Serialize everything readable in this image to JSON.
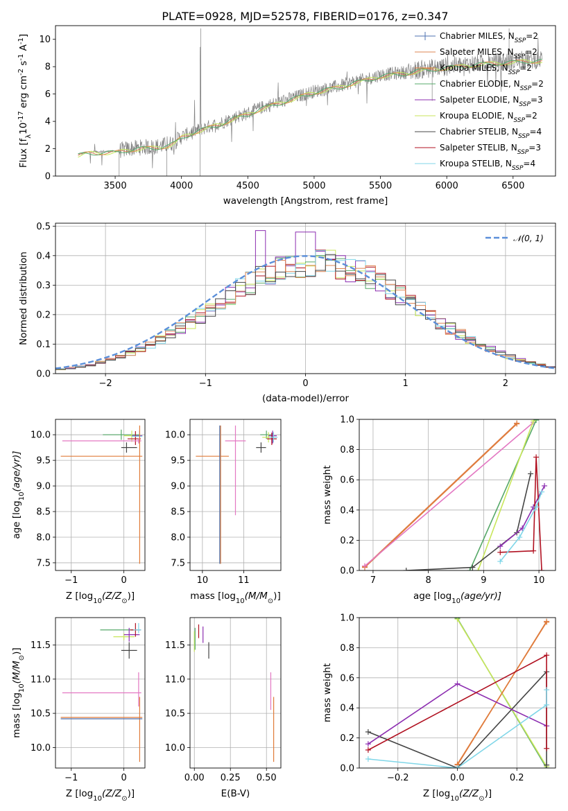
{
  "figure_title": "PLATE=0928, MJD=52578, FIBERID=0176, z=0.347",
  "colors": {
    "chabrier_miles": "#4c72b0",
    "salpeter_miles": "#dd8452",
    "kroupa_miles": "#e07b39",
    "chabrier_elodie": "#55a868",
    "salpeter_elodie": "#8c2db0",
    "kroupa_elodie": "#c8e65a",
    "chabrier_stelib": "#444444",
    "salpeter_stelib": "#b01020",
    "kroupa_stelib": "#7fd6e8",
    "pink": "#e377c2",
    "data_grey": "#808080",
    "gaussian": "#5b8fd9"
  },
  "chart_data": [
    {
      "id": "spectrum",
      "type": "line",
      "title": "PLATE=0928, MJD=52578, FIBERID=0176, z=0.347",
      "xlabel": "wavelength [Angstrom, rest frame]",
      "ylabel_main": "Flux [f",
      "ylabel_sub": "λ",
      "ylabel_rest": "10",
      "ylabel_sup": "-17",
      "ylabel_units": " erg cm",
      "ylabel_sup2": "-2",
      "ylabel_s": " s",
      "ylabel_sup3": "-1",
      "ylabel_A": " A",
      "ylabel_sup4": "-1",
      "ylabel_end": "]",
      "xlim": [
        3050,
        6820
      ],
      "ylim": [
        0,
        11
      ],
      "xticks": [
        3500,
        4000,
        4500,
        5000,
        5500,
        6000,
        6500
      ],
      "yticks": [
        0,
        2,
        4,
        6,
        8,
        10
      ],
      "grid": false,
      "legend_position": "upper-right",
      "legend": [
        {
          "label": "Chabrier MILES, N",
          "sub": "SSP",
          "tail": "=2",
          "color_key": "chabrier_miles"
        },
        {
          "label": "Salpeter MILES, N",
          "sub": "SSP",
          "tail": "=2",
          "color_key": "salpeter_miles"
        },
        {
          "label": "Kroupa MILES, N",
          "sub": "SSP",
          "tail": "=2",
          "color_key": "kroupa_miles"
        },
        {
          "label": "Chabrier ELODIE, N",
          "sub": "SSP",
          "tail": "=2",
          "color_key": "chabrier_elodie"
        },
        {
          "label": "Salpeter ELODIE, N",
          "sub": "SSP",
          "tail": "=3",
          "color_key": "salpeter_elodie"
        },
        {
          "label": "Kroupa ELODIE, N",
          "sub": "SSP",
          "tail": "=2",
          "color_key": "kroupa_elodie"
        },
        {
          "label": "Chabrier STELIB, N",
          "sub": "SSP",
          "tail": "=4",
          "color_key": "chabrier_stelib"
        },
        {
          "label": "Salpeter STELIB, N",
          "sub": "SSP",
          "tail": "=3",
          "color_key": "salpeter_stelib"
        },
        {
          "label": "Kroupa STELIB, N",
          "sub": "SSP",
          "tail": "=4",
          "color_key": "kroupa_stelib"
        }
      ],
      "model_continuum": {
        "x": [
          3220,
          3300,
          3400,
          3500,
          3550,
          3600,
          3700,
          3800,
          3900,
          3950,
          4000,
          4100,
          4200,
          4300,
          4400,
          4500,
          4600,
          4700,
          4800,
          4900,
          5000,
          5100,
          5200,
          5300,
          5400,
          5500,
          5600,
          5700,
          5800,
          5900,
          6000,
          6100,
          6200,
          6300,
          6400,
          6500,
          6600,
          6700
        ],
        "y": [
          1.6,
          1.75,
          1.8,
          1.8,
          1.9,
          2.0,
          2.1,
          2.15,
          2.3,
          2.5,
          2.9,
          3.3,
          3.6,
          3.9,
          4.3,
          4.6,
          5.0,
          5.3,
          5.6,
          5.9,
          6.2,
          6.4,
          6.6,
          6.9,
          7.1,
          7.4,
          7.5,
          7.6,
          7.8,
          7.9,
          8.0,
          8.1,
          8.2,
          8.3,
          8.35,
          8.4,
          8.5,
          8.5
        ]
      }
    },
    {
      "id": "residual-histogram",
      "type": "histogram",
      "xlabel": "(data-model)/error",
      "ylabel": "Normed distribution",
      "xlim": [
        -2.5,
        2.5
      ],
      "ylim": [
        0,
        0.51
      ],
      "xticks": [
        -2,
        -1,
        0,
        1,
        2
      ],
      "yticks": [
        0.0,
        0.1,
        0.2,
        0.3,
        0.4,
        0.5
      ],
      "grid": true,
      "legend_position": "upper-right",
      "gaussian_label": "𝒩(0, 1)",
      "bin_width": 0.1
    },
    {
      "id": "age-vs-metallicity",
      "type": "errorbar",
      "xlabel": "Z [log",
      "xlabel_sub": "10",
      "xlabel_tail": "(Z/Z",
      "xlabel_sun": "⊙",
      "xlabel_end": ")]",
      "ylabel": "age  [log",
      "ylabel_sub": "10",
      "ylabel_tail": "(age/yr)]",
      "xlim": [
        -1.3,
        0.4
      ],
      "ylim": [
        7.35,
        10.3
      ],
      "xticks": [
        -1,
        0
      ],
      "yticks": [
        7.5,
        8.0,
        8.5,
        9.0,
        9.5,
        10.0
      ],
      "grid": true,
      "points": [
        {
          "x": -0.05,
          "y": 10.0,
          "xerr": [
            0.35,
            0.35
          ],
          "yerr": [
            0.1,
            0.1
          ],
          "color_key": "chabrier_elodie"
        },
        {
          "x": 0.15,
          "y": 9.98,
          "xerr": [
            0.15,
            0.15
          ],
          "yerr": [
            0.12,
            0.1
          ],
          "color_key": "kroupa_elodie"
        },
        {
          "x": 0.3,
          "y": 9.98,
          "xerr": [
            0.15,
            0.05
          ],
          "yerr": [
            0.15,
            0.1
          ],
          "color_key": "salpeter_elodie"
        },
        {
          "x": 0.05,
          "y": 9.75,
          "xerr": [
            0.1,
            0.2
          ],
          "yerr": [
            0.1,
            0.1
          ],
          "color_key": "chabrier_stelib"
        },
        {
          "x": 0.22,
          "y": 9.92,
          "xerr": [
            0.15,
            0.1
          ],
          "yerr": [
            0.12,
            0.15
          ],
          "color_key": "salpeter_stelib"
        },
        {
          "x": 0.3,
          "y": 9.97,
          "xerr": [
            0.15,
            0.05
          ],
          "yerr": [
            0.1,
            0.1
          ],
          "color_key": "kroupa_stelib"
        },
        {
          "x": 0.28,
          "y": 9.88,
          "xerr": [
            1.45,
            0.05
          ],
          "yerr": [
            0.05,
            0.05
          ],
          "color_key": "pink"
        },
        {
          "x": 0.3,
          "y": 9.58,
          "xerr": [
            1.5,
            0.05
          ],
          "yerr": [
            2.1,
            0.6
          ],
          "color_key": "kroupa_miles"
        }
      ]
    },
    {
      "id": "age-vs-mass",
      "type": "errorbar",
      "xlabel": "mass [log",
      "xlabel_sub": "10",
      "xlabel_tail": "(M/M",
      "xlabel_sun": "⊙",
      "xlabel_end": ")]",
      "xlim": [
        9.7,
        11.9
      ],
      "ylim": [
        7.35,
        10.3
      ],
      "xticks": [
        10,
        11
      ],
      "yticks": [
        7.5,
        8.0,
        8.5,
        9.0,
        9.5,
        10.0
      ],
      "grid": true,
      "points": [
        {
          "x": 11.55,
          "y": 10.0,
          "xerr": [
            0.15,
            0.15
          ],
          "yerr": [
            0.08,
            0.08
          ],
          "color_key": "chabrier_elodie"
        },
        {
          "x": 11.6,
          "y": 9.95,
          "xerr": [
            0.15,
            0.1
          ],
          "yerr": [
            0.1,
            0.1
          ],
          "color_key": "kroupa_elodie"
        },
        {
          "x": 11.7,
          "y": 9.98,
          "xerr": [
            0.1,
            0.1
          ],
          "yerr": [
            0.15,
            0.1
          ],
          "color_key": "salpeter_elodie"
        },
        {
          "x": 11.42,
          "y": 9.75,
          "xerr": [
            0.12,
            0.12
          ],
          "yerr": [
            0.1,
            0.1
          ],
          "color_key": "chabrier_stelib"
        },
        {
          "x": 11.68,
          "y": 9.92,
          "xerr": [
            0.12,
            0.12
          ],
          "yerr": [
            0.12,
            0.12
          ],
          "color_key": "salpeter_stelib"
        },
        {
          "x": 11.72,
          "y": 9.95,
          "xerr": [
            0.1,
            0.1
          ],
          "yerr": [
            0.1,
            0.1
          ],
          "color_key": "kroupa_stelib"
        },
        {
          "x": 10.8,
          "y": 9.88,
          "xerr": [
            0.25,
            0.25
          ],
          "yerr": [
            1.45,
            0.3
          ],
          "color_key": "pink"
        },
        {
          "x": 10.44,
          "y": 9.58,
          "xerr": [
            0.6,
            0.2
          ],
          "yerr": [
            2.1,
            0.6
          ],
          "color_key": "kroupa_miles"
        },
        {
          "x": 10.42,
          "y": 9.58,
          "xerr": [
            0.0,
            0.0
          ],
          "yerr": [
            2.1,
            0.6
          ],
          "color_key": "chabrier_miles"
        }
      ]
    },
    {
      "id": "mass-weight-vs-age",
      "type": "line",
      "xlabel": "age  [log",
      "xlabel_sub": "10",
      "xlabel_tail": "(age/yr)]",
      "ylabel": "mass weight",
      "xlim": [
        6.75,
        10.3
      ],
      "ylim": [
        0,
        1.0
      ],
      "xticks": [
        7,
        8,
        9,
        10
      ],
      "yticks": [
        0.0,
        0.2,
        0.4,
        0.6,
        0.8,
        1.0
      ],
      "grid": true,
      "series": [
        {
          "color_key": "salpeter_miles",
          "x": [
            6.85,
            9.6
          ],
          "y": [
            0.025,
            0.975
          ]
        },
        {
          "color_key": "kroupa_miles",
          "x": [
            6.85,
            9.6
          ],
          "y": [
            0.02,
            0.97
          ]
        },
        {
          "color_key": "pink",
          "x": [
            6.85,
            9.9
          ],
          "y": [
            0.03,
            0.98
          ]
        },
        {
          "color_key": "chabrier_elodie",
          "x": [
            8.75,
            9.95
          ],
          "y": [
            0.0,
            0.995
          ]
        },
        {
          "color_key": "kroupa_elodie",
          "x": [
            8.9,
            9.9
          ],
          "y": [
            0.0,
            0.99
          ]
        },
        {
          "color_key": "chabrier_stelib",
          "x": [
            7.6,
            8.8,
            9.6,
            9.85
          ],
          "y": [
            0.0,
            0.02,
            0.25,
            0.64
          ]
        },
        {
          "color_key": "salpeter_elodie",
          "x": [
            9.3,
            9.7,
            9.9,
            10.1
          ],
          "y": [
            0.16,
            0.28,
            0.42,
            0.56
          ]
        },
        {
          "color_key": "salpeter_stelib",
          "x": [
            9.3,
            9.9,
            9.95,
            10.05
          ],
          "y": [
            0.12,
            0.13,
            0.75,
            0.0
          ]
        },
        {
          "color_key": "kroupa_stelib",
          "x": [
            9.3,
            9.65,
            9.95,
            10.05
          ],
          "y": [
            0.06,
            0.22,
            0.42,
            0.52
          ]
        }
      ]
    },
    {
      "id": "mass-vs-metallicity",
      "type": "errorbar",
      "xlabel": "Z [log",
      "xlabel_sub": "10",
      "xlabel_tail": "(Z/Z",
      "xlabel_sun": "⊙",
      "xlabel_end": ")]",
      "ylabel": "mass [log",
      "ylabel_sub": "10",
      "ylabel_tail": "(M/M",
      "ylabel_sun": "⊙",
      "ylabel_end": ")]",
      "xlim": [
        -1.3,
        0.4
      ],
      "ylim": [
        9.7,
        11.9
      ],
      "xticks": [
        -1,
        0
      ],
      "yticks": [
        10.0,
        10.5,
        11.0,
        11.5
      ],
      "grid": true,
      "points": [
        {
          "x": -0.05,
          "y": 11.72,
          "xerr": [
            0.4,
            0.3
          ],
          "yerr": [
            0.0,
            0.0
          ],
          "color_key": "chabrier_elodie"
        },
        {
          "x": 0.0,
          "y": 11.62,
          "xerr": [
            0.2,
            0.2
          ],
          "yerr": [
            0.05,
            0.05
          ],
          "color_key": "kroupa_elodie"
        },
        {
          "x": 0.1,
          "y": 11.65,
          "xerr": [
            0.1,
            0.2
          ],
          "yerr": [
            0.1,
            0.1
          ],
          "color_key": "salpeter_elodie"
        },
        {
          "x": 0.1,
          "y": 11.42,
          "xerr": [
            0.15,
            0.15
          ],
          "yerr": [
            0.12,
            0.12
          ],
          "color_key": "chabrier_stelib"
        },
        {
          "x": 0.22,
          "y": 11.72,
          "xerr": [
            0.1,
            0.1
          ],
          "yerr": [
            0.1,
            0.1
          ],
          "color_key": "salpeter_stelib"
        },
        {
          "x": 0.28,
          "y": 11.72,
          "xerr": [
            0.1,
            0.05
          ],
          "yerr": [
            0.05,
            0.1
          ],
          "color_key": "kroupa_stelib"
        },
        {
          "x": 0.28,
          "y": 10.8,
          "xerr": [
            1.45,
            0.05
          ],
          "yerr": [
            0.2,
            0.3
          ],
          "color_key": "pink"
        },
        {
          "x": 0.3,
          "y": 10.44,
          "xerr": [
            1.5,
            0.05
          ],
          "yerr": [
            0.65,
            0.3
          ],
          "color_key": "kroupa_miles"
        },
        {
          "x": 0.3,
          "y": 10.42,
          "xerr": [
            1.5,
            0.05
          ],
          "yerr": [
            0.0,
            0.0
          ],
          "color_key": "chabrier_miles"
        }
      ]
    },
    {
      "id": "mass-vs-ebv",
      "type": "errorbar",
      "xlabel": "E(B-V)",
      "xlim": [
        -0.03,
        0.6
      ],
      "ylim": [
        9.7,
        11.9
      ],
      "xticks": [
        0.0,
        0.25,
        0.5
      ],
      "xtick_labels": [
        "0.00",
        "0.25",
        "0.50"
      ],
      "yticks": [
        10.0,
        10.5,
        11.0,
        11.5
      ],
      "grid": true,
      "points": [
        {
          "x": 0.0,
          "y": 11.55,
          "xerr": [
            0,
            0
          ],
          "yerr": [
            0.15,
            0.15
          ],
          "color_key": "kroupa_elodie"
        },
        {
          "x": 0.005,
          "y": 11.55,
          "xerr": [
            0,
            0
          ],
          "yerr": [
            0.12,
            0.2
          ],
          "color_key": "chabrier_elodie"
        },
        {
          "x": 0.03,
          "y": 11.7,
          "xerr": [
            0,
            0
          ],
          "yerr": [
            0.1,
            0.1
          ],
          "color_key": "salpeter_stelib"
        },
        {
          "x": 0.06,
          "y": 11.65,
          "xerr": [
            0,
            0
          ],
          "yerr": [
            0.12,
            0.12
          ],
          "color_key": "salpeter_elodie"
        },
        {
          "x": 0.1,
          "y": 11.42,
          "xerr": [
            0,
            0
          ],
          "yerr": [
            0.12,
            0.12
          ],
          "color_key": "chabrier_stelib"
        },
        {
          "x": 0.53,
          "y": 10.8,
          "xerr": [
            0,
            0
          ],
          "yerr": [
            0.25,
            0.3
          ],
          "color_key": "pink"
        },
        {
          "x": 0.55,
          "y": 10.44,
          "xerr": [
            0,
            0
          ],
          "yerr": [
            0.65,
            0.3
          ],
          "color_key": "kroupa_miles"
        }
      ]
    },
    {
      "id": "mass-weight-vs-metallicity",
      "type": "line",
      "xlabel": "Z [log",
      "xlabel_sub": "10",
      "xlabel_tail": "(Z/Z",
      "xlabel_sun": "⊙",
      "xlabel_end": ")]",
      "ylabel": "mass weight",
      "xlim": [
        -0.33,
        0.33
      ],
      "ylim": [
        0,
        1.0
      ],
      "xticks": [
        -0.2,
        0.0,
        0.2
      ],
      "xtick_labels": [
        "−0.2",
        "0.0",
        "0.2"
      ],
      "yticks": [
        0.0,
        0.2,
        0.4,
        0.6,
        0.8,
        1.0
      ],
      "grid": true,
      "series": [
        {
          "color_key": "chabrier_elodie",
          "x": [
            0.0,
            0.3
          ],
          "y": [
            0.995,
            0.0
          ]
        },
        {
          "color_key": "kroupa_elodie",
          "x": [
            0.0,
            0.3
          ],
          "y": [
            0.99,
            0.01
          ]
        },
        {
          "color_key": "salpeter_miles",
          "x": [
            0.0,
            0.3
          ],
          "y": [
            0.02,
            0.975
          ]
        },
        {
          "color_key": "kroupa_miles",
          "x": [
            0.0,
            0.3
          ],
          "y": [
            0.025,
            0.97
          ]
        },
        {
          "color_key": "chabrier_stelib",
          "x": [
            -0.3,
            0.0,
            0.3,
            0.3
          ],
          "y": [
            0.24,
            0.0,
            0.64,
            0.02
          ]
        },
        {
          "color_key": "salpeter_elodie",
          "x": [
            -0.3,
            0.0,
            0.3
          ],
          "y": [
            0.16,
            0.56,
            0.28
          ]
        },
        {
          "color_key": "salpeter_stelib",
          "x": [
            -0.3,
            0.3,
            0.3
          ],
          "y": [
            0.12,
            0.75,
            0.13
          ]
        },
        {
          "color_key": "kroupa_stelib",
          "x": [
            -0.3,
            0.0,
            0.3,
            0.3
          ],
          "y": [
            0.06,
            0.0,
            0.42,
            0.52
          ]
        }
      ]
    }
  ]
}
